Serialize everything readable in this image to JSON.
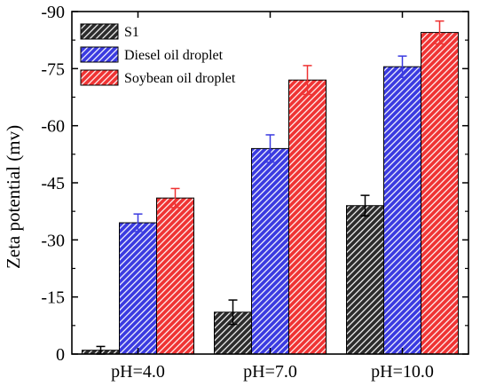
{
  "chart_data": {
    "type": "bar",
    "title": "",
    "xlabel": "",
    "ylabel": "Zeta potential (mv)",
    "categories": [
      "pH=4.0",
      "pH=7.0",
      "pH=10.0"
    ],
    "ylim": [
      0,
      -90
    ],
    "yticks": [
      0,
      -15,
      -30,
      -45,
      -60,
      -75,
      -90
    ],
    "grid": false,
    "legend_position": "top-left",
    "series": [
      {
        "name": "S1",
        "values": [
          -1.0,
          -11.0,
          -39.0
        ],
        "errors": [
          1.0,
          3.2,
          2.7
        ],
        "color": "#2b2b2b",
        "hatch_color": "#ffffff"
      },
      {
        "name": "Diesel oil droplet",
        "values": [
          -34.5,
          -54.0,
          -75.5
        ],
        "errors": [
          2.3,
          3.6,
          2.8
        ],
        "color": "#3a3ae0",
        "hatch_color": "#ffffff"
      },
      {
        "name": "Soybean oil droplet",
        "values": [
          -41.0,
          -72.0,
          -84.5
        ],
        "errors": [
          2.5,
          3.8,
          3.0
        ],
        "color": "#ef3333",
        "hatch_color": "#ffffff"
      }
    ]
  }
}
